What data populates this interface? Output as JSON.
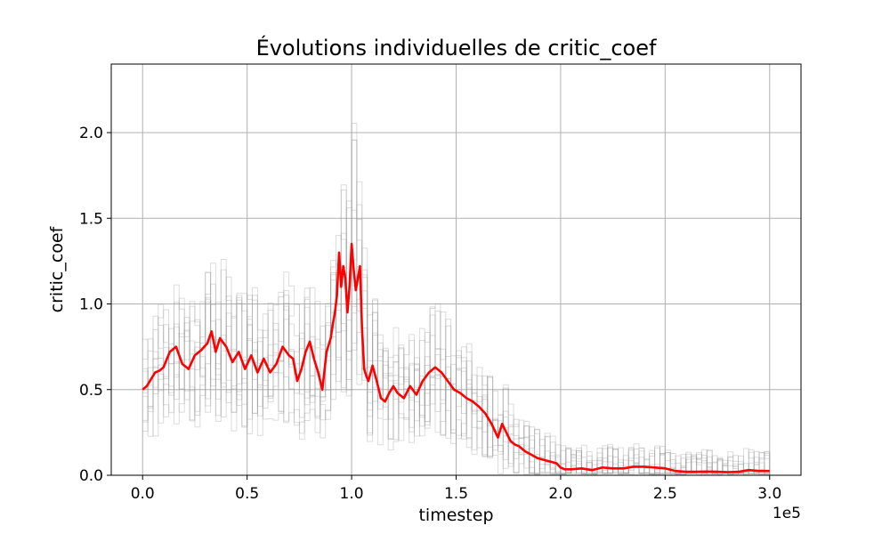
{
  "chart_data": {
    "type": "line",
    "title": "Évolutions individuelles de critic_coef",
    "xlabel": "timestep",
    "ylabel": "critic_coef",
    "x_offset_label": "1e5",
    "xlim": [
      -15000,
      315000
    ],
    "ylim": [
      0,
      2.4
    ],
    "grid": true,
    "xticks": [
      0,
      50000,
      100000,
      150000,
      200000,
      250000,
      300000
    ],
    "xtick_labels": [
      "0.0",
      "0.5",
      "1.0",
      "1.5",
      "2.0",
      "2.5",
      "3.0"
    ],
    "yticks": [
      0,
      0.5,
      1.0,
      1.5,
      2.0
    ],
    "ytick_labels": [
      "0.0",
      "0.5",
      "1.0",
      "1.5",
      "2.0"
    ],
    "colors": {
      "mean": "#ff0000",
      "individual": "#9a9a9a"
    },
    "mean_series": {
      "x": [
        0,
        2000,
        4000,
        6000,
        8000,
        10000,
        13000,
        16000,
        19000,
        22000,
        25000,
        28000,
        31000,
        33000,
        35000,
        37000,
        40000,
        43000,
        46000,
        49000,
        52000,
        55000,
        58000,
        61000,
        64000,
        67000,
        70000,
        72000,
        74000,
        76000,
        78000,
        80000,
        82000,
        84000,
        86000,
        88000,
        90000,
        91000,
        92000,
        93000,
        94000,
        95000,
        96000,
        97000,
        98000,
        99000,
        100000,
        101000,
        102000,
        103000,
        104000,
        105000,
        106000,
        107000,
        108000,
        110000,
        112000,
        114000,
        116000,
        118000,
        120000,
        122000,
        125000,
        128000,
        131000,
        134000,
        137000,
        140000,
        143000,
        146000,
        149000,
        152000,
        155000,
        158000,
        161000,
        164000,
        167000,
        170000,
        172000,
        174000,
        176000,
        178000,
        180000,
        183000,
        186000,
        189000,
        192000,
        195000,
        198000,
        200000,
        202000,
        205000,
        210000,
        215000,
        220000,
        225000,
        230000,
        235000,
        240000,
        245000,
        250000,
        255000,
        260000,
        265000,
        270000,
        275000,
        280000,
        285000,
        290000,
        295000,
        300000
      ],
      "y": [
        0.5,
        0.52,
        0.56,
        0.6,
        0.61,
        0.63,
        0.72,
        0.75,
        0.65,
        0.62,
        0.7,
        0.73,
        0.77,
        0.84,
        0.72,
        0.8,
        0.75,
        0.66,
        0.72,
        0.62,
        0.7,
        0.6,
        0.68,
        0.6,
        0.65,
        0.75,
        0.7,
        0.68,
        0.55,
        0.62,
        0.72,
        0.78,
        0.68,
        0.6,
        0.5,
        0.72,
        0.8,
        0.88,
        0.95,
        1.05,
        1.3,
        1.1,
        1.22,
        1.15,
        0.95,
        1.1,
        1.35,
        1.2,
        1.08,
        1.15,
        1.22,
        0.85,
        0.62,
        0.58,
        0.55,
        0.64,
        0.55,
        0.45,
        0.43,
        0.48,
        0.52,
        0.48,
        0.45,
        0.52,
        0.47,
        0.55,
        0.6,
        0.63,
        0.6,
        0.55,
        0.5,
        0.48,
        0.45,
        0.43,
        0.4,
        0.36,
        0.3,
        0.22,
        0.3,
        0.25,
        0.2,
        0.18,
        0.17,
        0.14,
        0.12,
        0.1,
        0.09,
        0.08,
        0.07,
        0.045,
        0.035,
        0.035,
        0.04,
        0.03,
        0.045,
        0.04,
        0.04,
        0.05,
        0.05,
        0.045,
        0.04,
        0.025,
        0.02,
        0.02,
        0.022,
        0.02,
        0.018,
        0.02,
        0.03,
        0.025,
        0.025
      ]
    }
  }
}
